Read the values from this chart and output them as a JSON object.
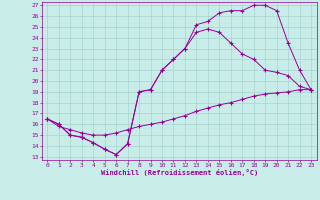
{
  "xlabel": "Windchill (Refroidissement éolien,°C)",
  "xlim": [
    -0.5,
    23.5
  ],
  "ylim": [
    12.7,
    27.3
  ],
  "xticks": [
    0,
    1,
    2,
    3,
    4,
    5,
    6,
    7,
    8,
    9,
    10,
    11,
    12,
    13,
    14,
    15,
    16,
    17,
    18,
    19,
    20,
    21,
    22,
    23
  ],
  "yticks": [
    13,
    14,
    15,
    16,
    17,
    18,
    19,
    20,
    21,
    22,
    23,
    24,
    25,
    26,
    27
  ],
  "bg_color": "#c8ece8",
  "grid_color": "#a8d4d0",
  "line_color": "#990099",
  "line1_x": [
    0,
    1,
    2,
    3,
    4,
    5,
    6,
    7,
    8,
    9,
    10,
    11,
    12,
    13,
    14,
    15,
    16,
    17,
    18,
    19,
    20,
    21,
    22,
    23
  ],
  "line1_y": [
    16.5,
    16.0,
    15.0,
    14.8,
    14.3,
    13.7,
    13.2,
    14.2,
    19.0,
    19.2,
    21.0,
    22.0,
    23.0,
    25.2,
    25.5,
    26.3,
    26.5,
    26.5,
    27.0,
    27.0,
    26.5,
    23.5,
    21.0,
    19.2
  ],
  "line2_x": [
    0,
    1,
    2,
    3,
    4,
    5,
    6,
    7,
    8,
    9,
    10,
    11,
    12,
    13,
    14,
    15,
    16,
    17,
    18,
    19,
    20,
    21,
    22,
    23
  ],
  "line2_y": [
    16.5,
    16.0,
    15.0,
    14.8,
    14.3,
    13.7,
    13.2,
    14.2,
    19.0,
    19.2,
    21.0,
    22.0,
    23.0,
    24.5,
    24.8,
    24.5,
    23.5,
    22.5,
    22.0,
    21.0,
    20.8,
    20.5,
    19.5,
    19.2
  ],
  "line3_x": [
    0,
    1,
    2,
    3,
    4,
    5,
    6,
    7,
    8,
    9,
    10,
    11,
    12,
    13,
    14,
    15,
    16,
    17,
    18,
    19,
    20,
    21,
    22,
    23
  ],
  "line3_y": [
    16.5,
    15.8,
    15.5,
    15.2,
    15.0,
    15.0,
    15.2,
    15.5,
    15.8,
    16.0,
    16.2,
    16.5,
    16.8,
    17.2,
    17.5,
    17.8,
    18.0,
    18.3,
    18.6,
    18.8,
    18.9,
    19.0,
    19.2,
    19.2
  ]
}
